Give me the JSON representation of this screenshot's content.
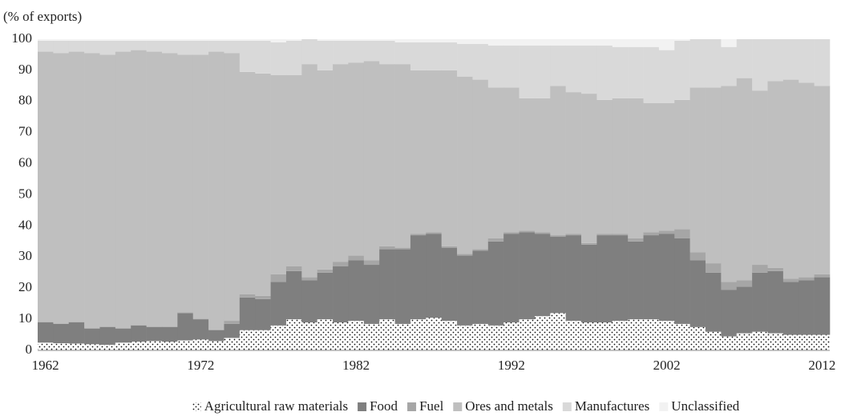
{
  "chart_data": {
    "type": "stacked_bar",
    "y_label": "(% of exports)",
    "categories": [
      "1962",
      null,
      null,
      null,
      null,
      null,
      null,
      null,
      null,
      null,
      "1972",
      null,
      null,
      null,
      null,
      null,
      null,
      null,
      null,
      null,
      "1982",
      null,
      null,
      null,
      null,
      null,
      null,
      null,
      null,
      null,
      "1992",
      null,
      null,
      null,
      null,
      null,
      null,
      null,
      null,
      null,
      "2002",
      null,
      null,
      null,
      null,
      null,
      null,
      null,
      null,
      null,
      "2012"
    ],
    "series": [
      {
        "name": "Agricultural raw materials",
        "color": "#ffffff",
        "pattern": "dots",
        "values": [
          2.5,
          2.3,
          2.2,
          2,
          1.8,
          2.5,
          2.8,
          3,
          2.8,
          3.2,
          3.5,
          3,
          4,
          6.5,
          6.5,
          8,
          10,
          9,
          10,
          9,
          9.5,
          8.5,
          10,
          8.5,
          10,
          10.5,
          9.5,
          8,
          8.5,
          8,
          9,
          10,
          11,
          12,
          9.5,
          9,
          9,
          9.5,
          10,
          10,
          9.5,
          8.5,
          7.5,
          6,
          4.5,
          5.5,
          6,
          5.5,
          5,
          5,
          5
        ]
      },
      {
        "name": "Food",
        "color": "#7f7f7f",
        "values": [
          6.5,
          6.2,
          6.8,
          5,
          5.7,
          4.5,
          5.2,
          4.5,
          4.7,
          8.8,
          6.5,
          3.5,
          4.5,
          10.5,
          10,
          14,
          15.5,
          13.5,
          15,
          18,
          19.5,
          19,
          22.5,
          24,
          27,
          27,
          23.5,
          22.5,
          23.5,
          27,
          28.5,
          28,
          26.5,
          24.5,
          27.5,
          25,
          28,
          27.5,
          25,
          27,
          28,
          27.5,
          21.5,
          19,
          15,
          15,
          19,
          20,
          17,
          17.5,
          18.5
        ]
      },
      {
        "name": "Fuel",
        "color": "#a6a6a6",
        "values": [
          0.2,
          0.2,
          0.2,
          0.2,
          0.2,
          0.2,
          0.2,
          0.2,
          0.2,
          0.2,
          0.2,
          0.2,
          1,
          1,
          1,
          2.5,
          1.5,
          1,
          1,
          1.5,
          1.5,
          1.5,
          1,
          0.5,
          0.5,
          0.5,
          0.5,
          0.5,
          0.5,
          1,
          0.5,
          0.5,
          0.5,
          0.5,
          0.5,
          0.5,
          0.5,
          0.5,
          1,
          1,
          1,
          3,
          2.5,
          3,
          2.5,
          2,
          2.5,
          1,
          1,
          1,
          1
        ]
      },
      {
        "name": "Ores and metals",
        "color": "#bfbfbf",
        "values": [
          86.8,
          86.8,
          86.8,
          88.3,
          87.3,
          88.8,
          88.3,
          88.3,
          87.8,
          82.8,
          84.8,
          89.3,
          86,
          71.5,
          71.5,
          64,
          61.5,
          68.5,
          64,
          63.5,
          62,
          64,
          58.5,
          59,
          52.5,
          52,
          56.5,
          57,
          54.5,
          48.5,
          46.5,
          42.5,
          43,
          48,
          45.5,
          48,
          43,
          43.5,
          45,
          41.5,
          41,
          41.5,
          53,
          56.5,
          63,
          65,
          56,
          60,
          64,
          62.5,
          60.5
        ]
      },
      {
        "name": "Manufactures",
        "color": "#d9d9d9",
        "values": [
          3.5,
          4,
          3.5,
          4,
          4.5,
          3.5,
          3,
          3.5,
          4,
          4.5,
          4.5,
          3.5,
          4,
          10,
          10.5,
          10.5,
          11,
          8,
          9.5,
          7.5,
          7,
          6.5,
          7.5,
          7,
          9,
          9,
          9,
          10.5,
          11.5,
          13.5,
          13.5,
          17,
          17,
          13,
          15,
          15.5,
          17.5,
          16.5,
          16.5,
          18,
          17,
          19,
          15.5,
          15.5,
          12.5,
          12.5,
          16.5,
          13.5,
          13,
          14,
          15
        ]
      },
      {
        "name": "Unclassified",
        "color": "#f2f2f2",
        "values": [
          0.5,
          0.5,
          0.5,
          0.5,
          0.5,
          0.5,
          0.5,
          0.5,
          0.5,
          0.5,
          0.5,
          0.5,
          0.5,
          0.5,
          0.5,
          1,
          0.5,
          0,
          0.5,
          0.5,
          0.5,
          0.5,
          0.5,
          1,
          1,
          1,
          1,
          1.5,
          1.5,
          2,
          2,
          2,
          2,
          2,
          2,
          2,
          2,
          2.5,
          2.5,
          2.5,
          3.5,
          0.5,
          0,
          0,
          2.5,
          0,
          0,
          0,
          0,
          0,
          0
        ]
      }
    ],
    "ylim": [
      0,
      100
    ],
    "yticks": [
      0,
      10,
      20,
      30,
      40,
      50,
      60,
      70,
      80,
      90,
      100
    ],
    "legend": "bottom"
  }
}
